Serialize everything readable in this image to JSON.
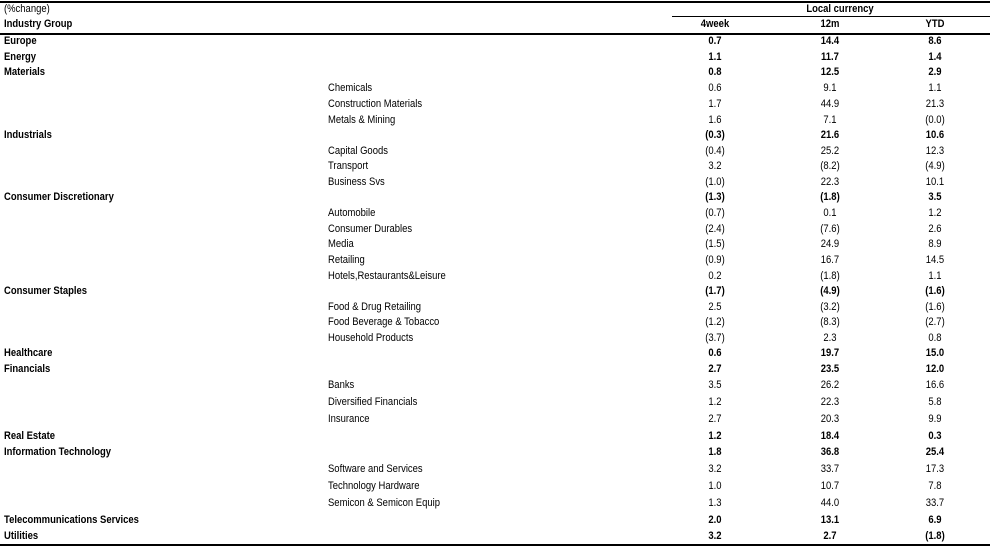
{
  "header": {
    "unit_label": "(%change)",
    "group_label": "Industry Group",
    "currency_label": "Local currency",
    "columns": [
      "4week",
      "12m",
      "YTD"
    ]
  },
  "rows": [
    {
      "name": "Europe",
      "level": "group",
      "values": [
        "0.7",
        "14.4",
        "8.6"
      ]
    },
    {
      "name": "Energy",
      "level": "group",
      "values": [
        "1.1",
        "11.7",
        "1.4"
      ]
    },
    {
      "name": "Materials",
      "level": "group",
      "values": [
        "0.8",
        "12.5",
        "2.9"
      ]
    },
    {
      "name": "Chemicals",
      "level": "sub",
      "values": [
        "0.6",
        "9.1",
        "1.1"
      ]
    },
    {
      "name": "Construction Materials",
      "level": "sub",
      "values": [
        "1.7",
        "44.9",
        "21.3"
      ]
    },
    {
      "name": "Metals & Mining",
      "level": "sub",
      "values": [
        "1.6",
        "7.1",
        "(0.0)"
      ]
    },
    {
      "name": "Industrials",
      "level": "group",
      "values": [
        "(0.3)",
        "21.6",
        "10.6"
      ]
    },
    {
      "name": "Capital Goods",
      "level": "sub",
      "values": [
        "(0.4)",
        "25.2",
        "12.3"
      ]
    },
    {
      "name": "Transport",
      "level": "sub",
      "values": [
        "3.2",
        "(8.2)",
        "(4.9)"
      ]
    },
    {
      "name": "Business Svs",
      "level": "sub",
      "values": [
        "(1.0)",
        "22.3",
        "10.1"
      ]
    },
    {
      "name": "Consumer Discretionary",
      "level": "group",
      "values": [
        "(1.3)",
        "(1.8)",
        "3.5"
      ]
    },
    {
      "name": "Automobile",
      "level": "sub",
      "values": [
        "(0.7)",
        "0.1",
        "1.2"
      ]
    },
    {
      "name": "Consumer Durables",
      "level": "sub",
      "values": [
        "(2.4)",
        "(7.6)",
        "2.6"
      ]
    },
    {
      "name": "Media",
      "level": "sub",
      "values": [
        "(1.5)",
        "24.9",
        "8.9"
      ]
    },
    {
      "name": "Retailing",
      "level": "sub",
      "values": [
        "(0.9)",
        "16.7",
        "14.5"
      ]
    },
    {
      "name": "Hotels,Restaurants&Leisure",
      "level": "sub",
      "values": [
        "0.2",
        "(1.8)",
        "1.1"
      ]
    },
    {
      "name": "Consumer Staples",
      "level": "group",
      "values": [
        "(1.7)",
        "(4.9)",
        "(1.6)"
      ]
    },
    {
      "name": "Food & Drug Retailing",
      "level": "sub",
      "values": [
        "2.5",
        "(3.2)",
        "(1.6)"
      ]
    },
    {
      "name": "Food Beverage & Tobacco",
      "level": "sub",
      "values": [
        "(1.2)",
        "(8.3)",
        "(2.7)"
      ]
    },
    {
      "name": "Household Products",
      "level": "sub",
      "values": [
        "(3.7)",
        "2.3",
        "0.8"
      ]
    },
    {
      "name": "Healthcare",
      "level": "group",
      "values": [
        "0.6",
        "19.7",
        "15.0"
      ]
    },
    {
      "name": "Financials",
      "level": "group",
      "values": [
        "2.7",
        "23.5",
        "12.0"
      ]
    },
    {
      "name": "Banks",
      "level": "sub",
      "values": [
        "3.5",
        "26.2",
        "16.6"
      ]
    },
    {
      "name": "Diversified Financials",
      "level": "sub",
      "values": [
        "1.2",
        "22.3",
        "5.8"
      ]
    },
    {
      "name": "Insurance",
      "level": "sub",
      "values": [
        "2.7",
        "20.3",
        "9.9"
      ]
    },
    {
      "name": "Real Estate",
      "level": "group",
      "values": [
        "1.2",
        "18.4",
        "0.3"
      ]
    },
    {
      "name": "Information Technology",
      "level": "group",
      "values": [
        "1.8",
        "36.8",
        "25.4"
      ]
    },
    {
      "name": "Software and Services",
      "level": "sub",
      "values": [
        "3.2",
        "33.7",
        "17.3"
      ]
    },
    {
      "name": "Technology Hardware",
      "level": "sub",
      "values": [
        "1.0",
        "10.7",
        "7.8"
      ]
    },
    {
      "name": "Semicon & Semicon Equip",
      "level": "sub",
      "values": [
        "1.3",
        "44.0",
        "33.7"
      ]
    },
    {
      "name": "Telecommunications Services",
      "level": "group",
      "values": [
        "2.0",
        "13.1",
        "6.9"
      ]
    },
    {
      "name": "Utilities",
      "level": "group",
      "values": [
        "3.2",
        "2.7",
        "(1.8)"
      ]
    }
  ]
}
